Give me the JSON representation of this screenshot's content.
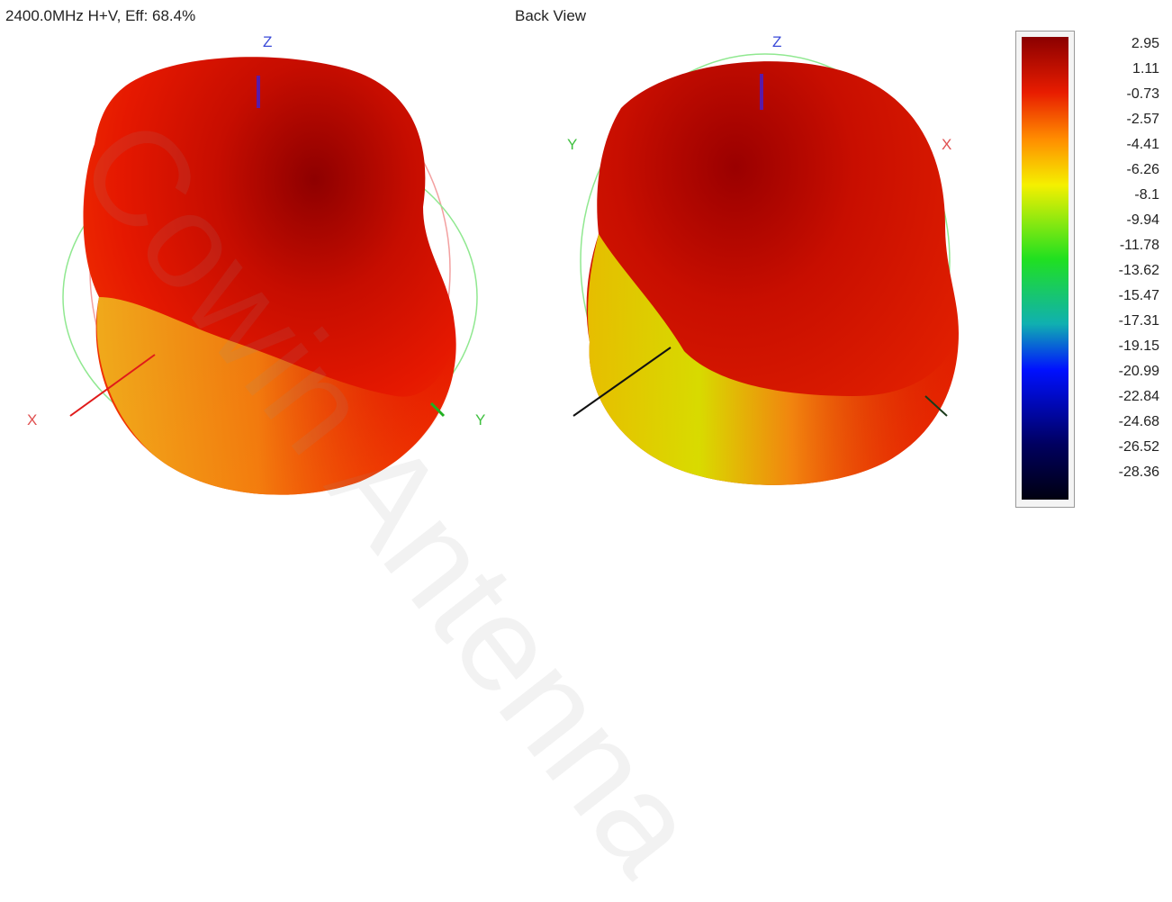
{
  "header": {
    "left_title": "2400.0MHz H+V, Eff: 68.4%",
    "right_title": "Back View"
  },
  "views": {
    "left": {
      "axis_z": "Z",
      "axis_x": "X",
      "axis_y": "Y"
    },
    "right": {
      "axis_z": "Z",
      "axis_y": "Y",
      "axis_x": "X"
    }
  },
  "legend": {
    "ticks": [
      "2.95",
      "1.11",
      "-0.73",
      "-2.57",
      "-4.41",
      "-6.26",
      "-8.1",
      "-9.94",
      "-11.78",
      "-13.62",
      "-15.47",
      "-17.31",
      "-19.15",
      "-20.99",
      "-22.84",
      "-24.68",
      "-26.52",
      "-28.36"
    ],
    "colors": {
      "top": "#8b0000",
      "red": "#e81c00",
      "orange": "#ff8c00",
      "yellow": "#f5f000",
      "green": "#20e020",
      "cyan": "#10b0b0",
      "blue": "#0010ff",
      "navy": "#000060",
      "bottom": "#000010"
    }
  },
  "watermark": "Cowin Antenna"
}
